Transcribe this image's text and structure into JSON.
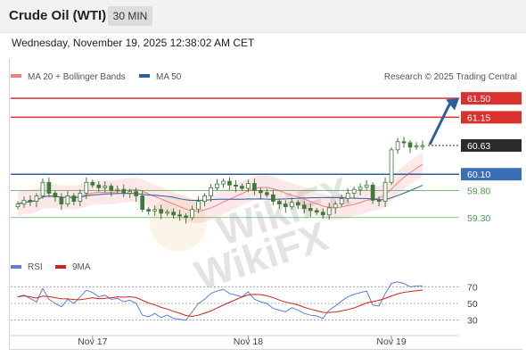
{
  "header": {
    "title": "Crude Oil (WTI)",
    "timeframe": "30 MIN"
  },
  "datetime": "Wednesday, November 19, 2025 12:38:02 AM CET",
  "colors": {
    "resistance": "#d93030",
    "support": "#2f5f9a",
    "current": "#2b2b2b",
    "pivot_green": "#4a9a4a",
    "ma20": "#f08080",
    "ma50": "#2f5f9a",
    "candle": "#3f7a3a",
    "rsi": "#5b7fd6",
    "rsi_ma": "#cc2222",
    "arrow": "#2f5f9a"
  },
  "legend": {
    "ma20_label": "MA 20 + Bollinger Bands",
    "ma50_label": "MA 50",
    "rsi_label": "RSI",
    "rsi_ma_label": "9MA",
    "credit": "Research © 2025 Trading Central"
  },
  "watermark": "WikiFX",
  "chart_data": [
    {
      "type": "candlestick",
      "yrange": [
        59.0,
        61.75
      ],
      "levels": [
        {
          "value": 61.5,
          "label": "61.50",
          "kind": "resistance"
        },
        {
          "value": 61.15,
          "label": "61.15",
          "kind": "resistance"
        },
        {
          "value": 60.63,
          "label": "60.63",
          "kind": "current"
        },
        {
          "value": 60.1,
          "label": "60.10",
          "kind": "support"
        },
        {
          "value": 59.8,
          "label": "59.80",
          "kind": "pivot"
        },
        {
          "value": 59.3,
          "label": "59.30",
          "kind": "pivot"
        }
      ],
      "x_ticks": [
        "Nov 17",
        "Nov 18",
        "Nov 19"
      ],
      "close": [
        59.55,
        59.62,
        59.6,
        59.7,
        59.95,
        59.75,
        59.68,
        59.55,
        59.7,
        59.6,
        59.75,
        59.95,
        59.9,
        59.85,
        59.88,
        59.8,
        59.82,
        59.75,
        59.78,
        59.7,
        59.45,
        59.42,
        59.45,
        59.38,
        59.4,
        59.35,
        59.33,
        59.3,
        59.45,
        59.6,
        59.7,
        59.85,
        59.92,
        59.97,
        59.9,
        59.88,
        59.84,
        59.93,
        59.8,
        59.76,
        59.72,
        59.6,
        59.55,
        59.5,
        59.58,
        59.53,
        59.47,
        59.43,
        59.4,
        59.35,
        59.48,
        59.55,
        59.65,
        59.75,
        59.82,
        59.86,
        59.9,
        59.62,
        59.6,
        59.95,
        60.55,
        60.7,
        60.68,
        60.6,
        60.62,
        60.63
      ]
    },
    {
      "type": "line",
      "name": "RSI",
      "levels": [
        70,
        50,
        30
      ],
      "values": [
        58,
        60,
        56,
        52,
        68,
        55,
        50,
        46,
        55,
        50,
        58,
        66,
        63,
        58,
        60,
        55,
        56,
        52,
        54,
        50,
        36,
        34,
        38,
        33,
        36,
        32,
        31,
        30,
        40,
        50,
        55,
        62,
        65,
        67,
        62,
        60,
        58,
        64,
        55,
        52,
        50,
        44,
        42,
        40,
        45,
        42,
        38,
        36,
        35,
        32,
        42,
        47,
        53,
        58,
        61,
        63,
        65,
        48,
        47,
        62,
        74,
        76,
        74,
        70,
        71,
        71
      ]
    }
  ]
}
